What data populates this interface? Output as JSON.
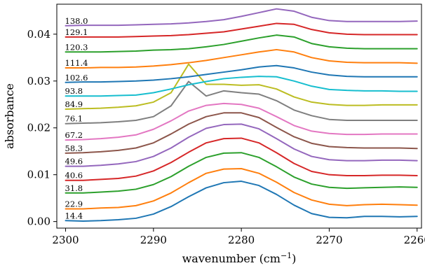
{
  "chart_data": {
    "type": "line",
    "xlabel": "wavenumber",
    "xlabel_unit": "(cm",
    "xlabel_unit_sup": "−1",
    "xlabel_unit_close": ")",
    "ylabel": "absorbance",
    "xlim": [
      2301.0,
      2259.5
    ],
    "ylim": [
      -0.0014,
      0.0464
    ],
    "x_axis_reversed": true,
    "x_ticks": [
      2300,
      2290,
      2280,
      2270,
      2260
    ],
    "x_tick_labels": [
      "2300",
      "2290",
      "2280",
      "2270",
      "2260"
    ],
    "y_ticks": [
      0.0,
      0.01,
      0.02,
      0.03,
      0.04
    ],
    "y_tick_labels": [
      "0.00",
      "0.01",
      "0.02",
      "0.03",
      "0.04"
    ],
    "grid": false,
    "legend": "none",
    "x": [
      2300,
      2298,
      2296,
      2294,
      2292,
      2290,
      2288,
      2286,
      2284,
      2282,
      2280,
      2278,
      2276,
      2274,
      2272,
      2270,
      2268,
      2266,
      2264,
      2262,
      2260
    ],
    "series": [
      {
        "name": "14.4",
        "color": "#1f77b4",
        "values": [
          0.0002,
          0.0001,
          0.0002,
          0.0004,
          0.0007,
          0.0016,
          0.0032,
          0.0053,
          0.0072,
          0.0083,
          0.0086,
          0.0077,
          0.0058,
          0.0035,
          0.0017,
          0.0009,
          0.0008,
          0.0011,
          0.0011,
          0.001,
          0.0011
        ]
      },
      {
        "name": "22.9",
        "color": "#ff7f0e",
        "values": [
          0.0027,
          0.0027,
          0.0029,
          0.003,
          0.0034,
          0.0044,
          0.0061,
          0.0083,
          0.0103,
          0.0112,
          0.0113,
          0.0103,
          0.0084,
          0.0062,
          0.0046,
          0.0037,
          0.0034,
          0.0036,
          0.0037,
          0.0036,
          0.0035
        ]
      },
      {
        "name": "31.8",
        "color": "#2ca02c",
        "values": [
          0.0061,
          0.0061,
          0.0063,
          0.0065,
          0.0069,
          0.0079,
          0.0096,
          0.0118,
          0.0137,
          0.0146,
          0.0147,
          0.0137,
          0.0117,
          0.0095,
          0.008,
          0.0073,
          0.0071,
          0.0072,
          0.0073,
          0.0074,
          0.0073
        ]
      },
      {
        "name": "40.6",
        "color": "#d62728",
        "values": [
          0.0088,
          0.0088,
          0.009,
          0.0092,
          0.0097,
          0.0108,
          0.0126,
          0.0148,
          0.0168,
          0.0177,
          0.0178,
          0.0168,
          0.0147,
          0.0124,
          0.0107,
          0.01,
          0.0098,
          0.0098,
          0.0099,
          0.0099,
          0.0098
        ]
      },
      {
        "name": "49.6",
        "color": "#9467bd",
        "values": [
          0.0118,
          0.0118,
          0.012,
          0.0123,
          0.0128,
          0.0139,
          0.0157,
          0.018,
          0.0199,
          0.0207,
          0.0208,
          0.0198,
          0.0177,
          0.0155,
          0.0139,
          0.0132,
          0.013,
          0.013,
          0.0131,
          0.0131,
          0.013
        ]
      },
      {
        "name": "58.3",
        "color": "#8c564b",
        "values": [
          0.0146,
          0.0147,
          0.0149,
          0.0152,
          0.0157,
          0.0168,
          0.0187,
          0.0208,
          0.0224,
          0.0232,
          0.0232,
          0.0222,
          0.0201,
          0.0181,
          0.0167,
          0.016,
          0.0158,
          0.0157,
          0.0157,
          0.0157,
          0.0156
        ]
      },
      {
        "name": "67.2",
        "color": "#e377c2",
        "values": [
          0.0174,
          0.0175,
          0.0177,
          0.018,
          0.0185,
          0.0197,
          0.0215,
          0.0236,
          0.0248,
          0.0252,
          0.025,
          0.0242,
          0.0224,
          0.0205,
          0.0193,
          0.0188,
          0.0186,
          0.0186,
          0.0187,
          0.0187,
          0.0187
        ]
      },
      {
        "name": "76.1",
        "color": "#7f7f7f",
        "values": [
          0.0209,
          0.021,
          0.0211,
          0.0213,
          0.0216,
          0.0224,
          0.0247,
          0.0299,
          0.0268,
          0.0279,
          0.0275,
          0.0272,
          0.0258,
          0.0238,
          0.0226,
          0.0218,
          0.0216,
          0.0216,
          0.0216,
          0.0216,
          0.0216
        ]
      },
      {
        "name": "84.9",
        "color": "#bcbd22",
        "values": [
          0.024,
          0.0241,
          0.0242,
          0.0244,
          0.0247,
          0.0255,
          0.0275,
          0.0336,
          0.0293,
          0.0293,
          0.0291,
          0.0292,
          0.0283,
          0.0266,
          0.0255,
          0.025,
          0.0248,
          0.0248,
          0.0249,
          0.0249,
          0.0249
        ]
      },
      {
        "name": "93.8",
        "color": "#17becf",
        "values": [
          0.0268,
          0.0268,
          0.0268,
          0.0269,
          0.027,
          0.0275,
          0.0283,
          0.0292,
          0.0299,
          0.0305,
          0.0308,
          0.031,
          0.0309,
          0.03,
          0.0289,
          0.0282,
          0.028,
          0.0279,
          0.0279,
          0.0278,
          0.0278
        ]
      },
      {
        "name": "102.6",
        "color": "#1f77b4",
        "values": [
          0.0297,
          0.0298,
          0.0298,
          0.0299,
          0.03,
          0.0302,
          0.0305,
          0.0309,
          0.0314,
          0.0319,
          0.0324,
          0.033,
          0.0333,
          0.0328,
          0.0319,
          0.0313,
          0.031,
          0.0309,
          0.0309,
          0.0309,
          0.0309
        ]
      },
      {
        "name": "111.4",
        "color": "#ff7f0e",
        "values": [
          0.0328,
          0.0328,
          0.0329,
          0.0329,
          0.033,
          0.0332,
          0.0335,
          0.0339,
          0.0344,
          0.035,
          0.0356,
          0.0362,
          0.0367,
          0.0362,
          0.035,
          0.0343,
          0.034,
          0.0339,
          0.0339,
          0.0339,
          0.0338
        ]
      },
      {
        "name": "120.3",
        "color": "#2ca02c",
        "values": [
          0.0362,
          0.0362,
          0.0362,
          0.0363,
          0.0364,
          0.0366,
          0.0367,
          0.0369,
          0.0373,
          0.0378,
          0.0385,
          0.0392,
          0.0398,
          0.0394,
          0.038,
          0.0373,
          0.037,
          0.0369,
          0.0369,
          0.0369,
          0.0369
        ]
      },
      {
        "name": "129.1",
        "color": "#d62728",
        "values": [
          0.0394,
          0.0394,
          0.0394,
          0.0394,
          0.0395,
          0.0396,
          0.0397,
          0.0399,
          0.0402,
          0.0405,
          0.0411,
          0.0417,
          0.0423,
          0.0421,
          0.041,
          0.0403,
          0.04,
          0.0399,
          0.0399,
          0.0399,
          0.0399
        ]
      },
      {
        "name": "138.0",
        "color": "#9467bd",
        "values": [
          0.0418,
          0.0419,
          0.0419,
          0.0419,
          0.042,
          0.0421,
          0.0422,
          0.0424,
          0.0427,
          0.0431,
          0.0438,
          0.0446,
          0.0454,
          0.0449,
          0.0436,
          0.0429,
          0.0427,
          0.0427,
          0.0427,
          0.0427,
          0.0428
        ]
      }
    ]
  }
}
